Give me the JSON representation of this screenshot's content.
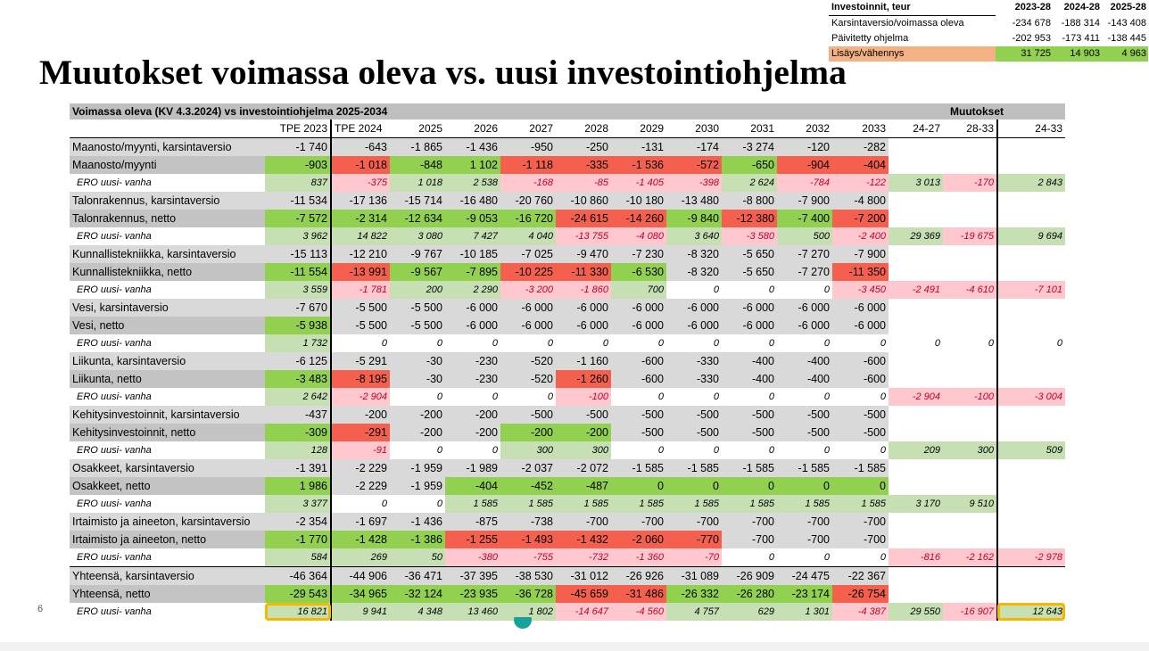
{
  "slide": {
    "title": "Muutokset voimassa oleva vs. uusi investointiohjelma",
    "page_number": "6"
  },
  "summary": {
    "header": [
      "Investoinnit, teur",
      "2023-28",
      "2024-28",
      "2025-28"
    ],
    "rows": [
      {
        "label": "Karsintaversio/voimassa oleva",
        "values": [
          "-234 678",
          "-188 314",
          "-143 408"
        ],
        "style": "plain"
      },
      {
        "label": "Päivitetty ohjelma",
        "values": [
          "-202 953",
          "-173 411",
          "-138 445"
        ],
        "style": "plain"
      },
      {
        "label": "Lisäys/vähennys",
        "values": [
          "31 725",
          "14 903",
          "4 963"
        ],
        "style": "highlight"
      }
    ]
  },
  "table": {
    "title": "Voimassa oleva (KV 4.3.2024) vs investointiohjelma 2025-2034",
    "changes_title": "Muutokset",
    "columns": [
      "",
      "TPE 2023",
      "TPE 2024",
      "2025",
      "2026",
      "2027",
      "2028",
      "2029",
      "2030",
      "2031",
      "2032",
      "2033",
      "24-27",
      "28-33",
      "24-33"
    ],
    "colors": {
      "green": "#92d050",
      "light_green": "#c6e0b4",
      "red": "#f4604d",
      "pink": "#ffc7ce",
      "gray": "#d9d9d9",
      "highlight": "#f5b800"
    },
    "rows": [
      {
        "type": "karsinta",
        "label": "Maanosto/myynti, karsintaversio",
        "values": [
          "-1 740",
          "-643",
          "-1 865",
          "-1 436",
          "-950",
          "-250",
          "-131",
          "-174",
          "-3 274",
          "-120",
          "-282"
        ],
        "colors": [
          "",
          "",
          "",
          "",
          "",
          "",
          "",
          "",
          "",
          "",
          ""
        ]
      },
      {
        "type": "netto",
        "label": "Maanosto/myynti",
        "values": [
          "-903",
          "-1 018",
          "-848",
          "1 102",
          "-1 118",
          "-335",
          "-1 536",
          "-572",
          "-650",
          "-904",
          "-404"
        ],
        "colors": [
          "g",
          "r",
          "g",
          "g",
          "r",
          "r",
          "r",
          "r",
          "g",
          "r",
          "r"
        ]
      },
      {
        "type": "ero",
        "label": "ERO uusi- vanha",
        "values": [
          "837",
          "-375",
          "1 018",
          "2 538",
          "-168",
          "-85",
          "-1 405",
          "-398",
          "2 624",
          "-784",
          "-122"
        ],
        "colors": [
          "lg",
          "p",
          "lg",
          "lg",
          "p",
          "p",
          "p",
          "p",
          "lg",
          "p",
          "p"
        ],
        "changes": [
          "3 013",
          "-170",
          "2 843"
        ],
        "change_colors": [
          "lg",
          "p",
          "lg"
        ]
      },
      {
        "type": "karsinta",
        "label": "Talonrakennus, karsintaversio",
        "values": [
          "-11 534",
          "-17 136",
          "-15 714",
          "-16 480",
          "-20 760",
          "-10 860",
          "-10 180",
          "-13 480",
          "-8 800",
          "-7 900",
          "-4 800"
        ],
        "colors": [
          "",
          "",
          "",
          "",
          "",
          "",
          "",
          "",
          "",
          "",
          ""
        ]
      },
      {
        "type": "netto",
        "label": "Talonrakennus, netto",
        "values": [
          "-7 572",
          "-2 314",
          "-12 634",
          "-9 053",
          "-16 720",
          "-24 615",
          "-14 260",
          "-9 840",
          "-12 380",
          "-7 400",
          "-7 200"
        ],
        "colors": [
          "g",
          "g",
          "g",
          "g",
          "g",
          "r",
          "r",
          "g",
          "r",
          "g",
          "r"
        ]
      },
      {
        "type": "ero",
        "label": "ERO uusi- vanha",
        "values": [
          "3 962",
          "14 822",
          "3 080",
          "7 427",
          "4 040",
          "-13 755",
          "-4 080",
          "3 640",
          "-3 580",
          "500",
          "-2 400"
        ],
        "colors": [
          "lg",
          "lg",
          "lg",
          "lg",
          "lg",
          "p",
          "p",
          "lg",
          "p",
          "lg",
          "p"
        ],
        "changes": [
          "29 369",
          "-19 675",
          "9 694"
        ],
        "change_colors": [
          "lg",
          "p",
          "lg"
        ]
      },
      {
        "type": "karsinta",
        "label": "Kunnallistekniikka, karsintaversio",
        "values": [
          "-15 113",
          "-12 210",
          "-9 767",
          "-10 185",
          "-7 025",
          "-9 470",
          "-7 230",
          "-8 320",
          "-5 650",
          "-7 270",
          "-7 900"
        ],
        "colors": [
          "",
          "",
          "",
          "",
          "",
          "",
          "",
          "",
          "",
          "",
          ""
        ]
      },
      {
        "type": "netto",
        "label": "Kunnallistekniikka, netto",
        "values": [
          "-11 554",
          "-13 991",
          "-9 567",
          "-7 895",
          "-10 225",
          "-11 330",
          "-6 530",
          "-8 320",
          "-5 650",
          "-7 270",
          "-11 350"
        ],
        "colors": [
          "g",
          "r",
          "g",
          "g",
          "r",
          "r",
          "g",
          "",
          "",
          "",
          "r"
        ]
      },
      {
        "type": "ero",
        "label": "ERO uusi- vanha",
        "values": [
          "3 559",
          "-1 781",
          "200",
          "2 290",
          "-3 200",
          "-1 860",
          "700",
          "0",
          "0",
          "0",
          "-3 450"
        ],
        "colors": [
          "lg",
          "p",
          "lg",
          "lg",
          "p",
          "p",
          "lg",
          "",
          "",
          "",
          "p"
        ],
        "changes": [
          "-2 491",
          "-4 610",
          "-7 101"
        ],
        "change_colors": [
          "p",
          "p",
          "p"
        ]
      },
      {
        "type": "karsinta",
        "label": "Vesi, karsintaversio",
        "values": [
          "-7 670",
          "-5 500",
          "-5 500",
          "-6 000",
          "-6 000",
          "-6 000",
          "-6 000",
          "-6 000",
          "-6 000",
          "-6 000",
          "-6 000"
        ],
        "colors": [
          "",
          "",
          "",
          "",
          "",
          "",
          "",
          "",
          "",
          "",
          ""
        ]
      },
      {
        "type": "netto",
        "label": "Vesi, netto",
        "values": [
          "-5 938",
          "-5 500",
          "-5 500",
          "-6 000",
          "-6 000",
          "-6 000",
          "-6 000",
          "-6 000",
          "-6 000",
          "-6 000",
          "-6 000"
        ],
        "colors": [
          "g",
          "",
          "",
          "",
          "",
          "",
          "",
          "",
          "",
          "",
          ""
        ]
      },
      {
        "type": "ero",
        "label": "ERO uusi- vanha",
        "values": [
          "1 732",
          "0",
          "0",
          "0",
          "0",
          "0",
          "0",
          "0",
          "0",
          "0",
          "0"
        ],
        "colors": [
          "lg",
          "",
          "",
          "",
          "",
          "",
          "",
          "",
          "",
          "",
          ""
        ],
        "changes": [
          "0",
          "0",
          "0"
        ],
        "change_colors": [
          "",
          "",
          ""
        ]
      },
      {
        "type": "karsinta",
        "label": "Liikunta, karsintaversio",
        "values": [
          "-6 125",
          "-5 291",
          "-30",
          "-230",
          "-520",
          "-1 160",
          "-600",
          "-330",
          "-400",
          "-400",
          "-600"
        ],
        "colors": [
          "",
          "",
          "",
          "",
          "",
          "",
          "",
          "",
          "",
          "",
          ""
        ]
      },
      {
        "type": "netto",
        "label": "Liikunta, netto",
        "values": [
          "-3 483",
          "-8 195",
          "-30",
          "-230",
          "-520",
          "-1 260",
          "-600",
          "-330",
          "-400",
          "-400",
          "-600"
        ],
        "colors": [
          "g",
          "r",
          "",
          "",
          "",
          "r",
          "",
          "",
          "",
          "",
          ""
        ]
      },
      {
        "type": "ero",
        "label": "ERO uusi- vanha",
        "values": [
          "2 642",
          "-2 904",
          "0",
          "0",
          "0",
          "-100",
          "0",
          "0",
          "0",
          "0",
          "0"
        ],
        "colors": [
          "lg",
          "p",
          "",
          "",
          "",
          "p",
          "",
          "",
          "",
          "",
          ""
        ],
        "changes": [
          "-2 904",
          "-100",
          "-3 004"
        ],
        "change_colors": [
          "p",
          "p",
          "p"
        ]
      },
      {
        "type": "karsinta",
        "label": "Kehitysinvestoinnit, karsintaversio",
        "values": [
          "-437",
          "-200",
          "-200",
          "-200",
          "-500",
          "-500",
          "-500",
          "-500",
          "-500",
          "-500",
          "-500"
        ],
        "colors": [
          "",
          "",
          "",
          "",
          "",
          "",
          "",
          "",
          "",
          "",
          ""
        ]
      },
      {
        "type": "netto",
        "label": "Kehitysinvestoinnit, netto",
        "values": [
          "-309",
          "-291",
          "-200",
          "-200",
          "-200",
          "-200",
          "-500",
          "-500",
          "-500",
          "-500",
          "-500"
        ],
        "colors": [
          "g",
          "r",
          "",
          "",
          "g",
          "g",
          "",
          "",
          "",
          "",
          ""
        ]
      },
      {
        "type": "ero",
        "label": "ERO uusi- vanha",
        "values": [
          "128",
          "-91",
          "0",
          "0",
          "300",
          "300",
          "0",
          "0",
          "0",
          "0",
          "0"
        ],
        "colors": [
          "lg",
          "p",
          "",
          "",
          "lg",
          "lg",
          "",
          "",
          "",
          "",
          ""
        ],
        "changes": [
          "209",
          "300",
          "509"
        ],
        "change_colors": [
          "lg",
          "lg",
          "lg"
        ]
      },
      {
        "type": "karsinta",
        "label": "Osakkeet, karsintaversio",
        "values": [
          "-1 391",
          "-2 229",
          "-1 959",
          "-1 989",
          "-2 037",
          "-2 072",
          "-1 585",
          "-1 585",
          "-1 585",
          "-1 585",
          "-1 585"
        ],
        "colors": [
          "",
          "",
          "",
          "",
          "",
          "",
          "",
          "",
          "",
          "",
          ""
        ]
      },
      {
        "type": "netto",
        "label": "Osakkeet, netto",
        "values": [
          "1 986",
          "-2 229",
          "-1 959",
          "-404",
          "-452",
          "-487",
          "0",
          "0",
          "0",
          "0",
          "0"
        ],
        "colors": [
          "g",
          "",
          "",
          "g",
          "g",
          "g",
          "g",
          "g",
          "g",
          "g",
          "g"
        ]
      },
      {
        "type": "ero",
        "label": "ERO uusi- vanha",
        "values": [
          "3 377",
          "0",
          "0",
          "1 585",
          "1 585",
          "1 585",
          "1 585",
          "1 585",
          "1 585",
          "1 585",
          "1 585"
        ],
        "colors": [
          "lg",
          "",
          "",
          "lg",
          "lg",
          "lg",
          "lg",
          "lg",
          "lg",
          "lg",
          "lg"
        ],
        "changes": [
          "3 170",
          "9 510",
          ""
        ],
        "change_colors": [
          "lg",
          "lg",
          ""
        ]
      },
      {
        "type": "karsinta",
        "label": "Irtaimisto ja aineeton, karsintaversio",
        "values": [
          "-2 354",
          "-1 697",
          "-1 436",
          "-875",
          "-738",
          "-700",
          "-700",
          "-700",
          "-700",
          "-700",
          "-700"
        ],
        "colors": [
          "",
          "",
          "",
          "",
          "",
          "",
          "",
          "",
          "",
          "",
          ""
        ]
      },
      {
        "type": "netto",
        "label": "Irtaimisto ja aineeton, netto",
        "values": [
          "-1 770",
          "-1 428",
          "-1 386",
          "-1 255",
          "-1 493",
          "-1 432",
          "-2 060",
          "-770",
          "-700",
          "-700",
          "-700"
        ],
        "colors": [
          "g",
          "g",
          "g",
          "r",
          "r",
          "r",
          "r",
          "r",
          "",
          "",
          ""
        ]
      },
      {
        "type": "ero",
        "label": "ERO uusi- vanha",
        "values": [
          "584",
          "269",
          "50",
          "-380",
          "-755",
          "-732",
          "-1 360",
          "-70",
          "0",
          "0",
          "0"
        ],
        "colors": [
          "lg",
          "lg",
          "lg",
          "p",
          "p",
          "p",
          "p",
          "p",
          "",
          "",
          ""
        ],
        "changes": [
          "-816",
          "-2 162",
          "-2 978"
        ],
        "change_colors": [
          "p",
          "p",
          "p"
        ]
      },
      {
        "type": "karsinta",
        "label": "Yhteensä, karsintaversio",
        "values": [
          "-46 364",
          "-44 906",
          "-36 471",
          "-37 395",
          "-38 530",
          "-31 012",
          "-26 926",
          "-31 089",
          "-26 909",
          "-24 475",
          "-22 367"
        ],
        "colors": [
          "",
          "",
          "",
          "",
          "",
          "",
          "",
          "",
          "",
          "",
          ""
        ],
        "topline": true
      },
      {
        "type": "netto",
        "label": "Yhteensä, netto",
        "values": [
          "-29 543",
          "-34 965",
          "-32 124",
          "-23 935",
          "-36 728",
          "-45 659",
          "-31 486",
          "-26 332",
          "-26 280",
          "-23 174",
          "-26 754"
        ],
        "colors": [
          "g",
          "g",
          "g",
          "g",
          "g",
          "r",
          "r",
          "g",
          "g",
          "g",
          "r"
        ]
      },
      {
        "type": "ero",
        "label": "ERO uusi- vanha",
        "values": [
          "16 821",
          "9 941",
          "4 348",
          "13 460",
          "1 802",
          "-14 647",
          "-4 560",
          "4 757",
          "629",
          "1 301",
          "-4 387"
        ],
        "colors": [
          "lg",
          "lg",
          "lg",
          "lg",
          "lg",
          "p",
          "p",
          "lg",
          "lg",
          "lg",
          "p"
        ],
        "changes": [
          "29 550",
          "-16 907",
          "12 643"
        ],
        "change_colors": [
          "lg",
          "p",
          "lg"
        ],
        "final": true
      }
    ]
  }
}
